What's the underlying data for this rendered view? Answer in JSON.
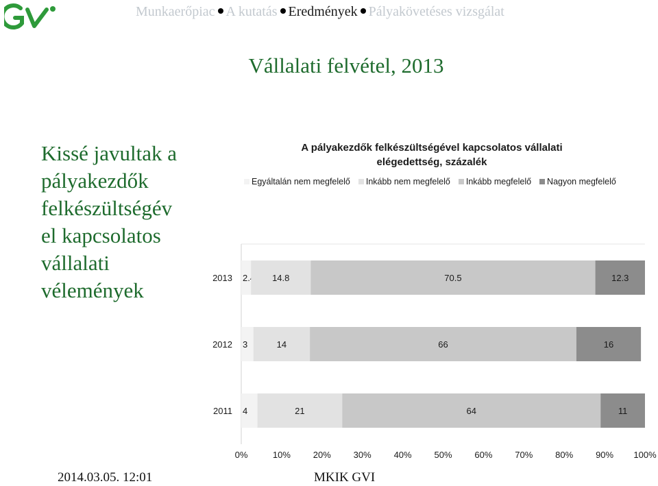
{
  "header": {
    "logo_icon": "gvi-logo-icon",
    "nav": [
      {
        "label": "Munkaerőpiac",
        "active": false
      },
      {
        "label": "A kutatás",
        "active": false
      },
      {
        "label": "Eredmények",
        "active": true
      },
      {
        "label": "Pályakövetéses vizsgálat",
        "active": false
      }
    ]
  },
  "slide": {
    "title": "Vállalati felvétel, 2013",
    "side_text": [
      "Kissé javultak a",
      "pályakezdők",
      "felkészültségév",
      "el kapcsolatos",
      "vállalati",
      "vélemények"
    ]
  },
  "footer": {
    "date": "2014.03.05. 12:01",
    "org": "MKIK GVI"
  },
  "chart_data": {
    "type": "bar",
    "orientation": "horizontal",
    "stacked": true,
    "title_lines": [
      "A pályakezdők felkészültségével kapcsolatos vállalati",
      "elégedettség, százalék"
    ],
    "categories": [
      "2013",
      "2012",
      "2011"
    ],
    "series": [
      {
        "name": "Egyáltalán nem megfelelő",
        "color": "#f3f3f3",
        "values": [
          2.4,
          3,
          4
        ],
        "labels": [
          "2.4",
          "3",
          "4"
        ]
      },
      {
        "name": "Inkább nem megfelelő",
        "color": "#e2e2e2",
        "values": [
          14.8,
          14,
          21
        ],
        "labels": [
          "14.8",
          "14",
          "21"
        ]
      },
      {
        "name": "Inkább megfelelő",
        "color": "#c8c8c8",
        "values": [
          70.5,
          66,
          64
        ],
        "labels": [
          "70.5",
          "66",
          "64"
        ]
      },
      {
        "name": "Nagyon megfelelő",
        "color": "#8c8c8c",
        "values": [
          12.3,
          16,
          11
        ],
        "labels": [
          "12.3",
          "16",
          "11"
        ]
      }
    ],
    "xlim": [
      0,
      100
    ],
    "xticks": [
      "0%",
      "10%",
      "20%",
      "30%",
      "40%",
      "50%",
      "60%",
      "70%",
      "80%",
      "90%",
      "100%"
    ],
    "legend_position": "top",
    "grid": false
  }
}
